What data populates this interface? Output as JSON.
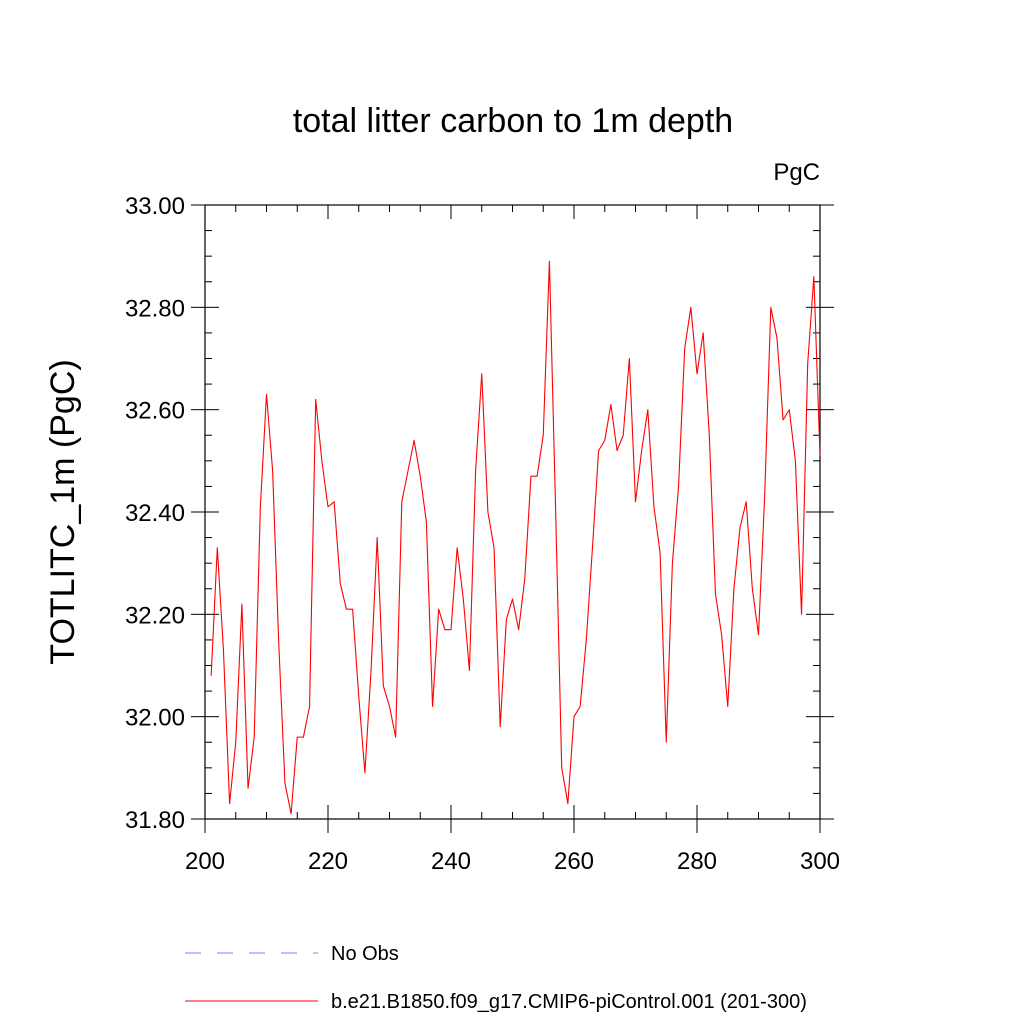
{
  "chart_data": {
    "type": "line",
    "title": "total litter carbon to 1m depth",
    "units": "PgC",
    "xlabel": "",
    "ylabel": "TOTLITC_1m  (PgC)",
    "xlim": [
      200,
      300
    ],
    "ylim": [
      31.8,
      33.0
    ],
    "xticks": [
      200,
      220,
      240,
      260,
      280,
      300
    ],
    "xtick_labels": [
      "200",
      "220",
      "240",
      "260",
      "280",
      "300"
    ],
    "yticks": [
      31.8,
      32.0,
      32.2,
      32.4,
      32.6,
      32.8,
      33.0
    ],
    "ytick_labels": [
      "31.80",
      "32.00",
      "32.20",
      "32.40",
      "32.60",
      "32.80",
      "33.00"
    ],
    "grid": false,
    "legend_position": "bottom",
    "series": [
      {
        "name": "b.e21.B1850.f09_g17.CMIP6-piControl.001 (201-300)",
        "color": "#ff0000",
        "style": "solid",
        "x": [
          201,
          202,
          203,
          204,
          205,
          206,
          207,
          208,
          209,
          210,
          211,
          212,
          213,
          214,
          215,
          216,
          217,
          218,
          219,
          220,
          221,
          222,
          223,
          224,
          225,
          226,
          227,
          228,
          229,
          230,
          231,
          232,
          233,
          234,
          235,
          236,
          237,
          238,
          239,
          240,
          241,
          242,
          243,
          244,
          245,
          246,
          247,
          248,
          249,
          250,
          251,
          252,
          253,
          254,
          255,
          256,
          257,
          258,
          259,
          260,
          261,
          262,
          263,
          264,
          265,
          266,
          267,
          268,
          269,
          270,
          271,
          272,
          273,
          274,
          275,
          276,
          277,
          278,
          279,
          280,
          281,
          282,
          283,
          284,
          285,
          286,
          287,
          288,
          289,
          290,
          291,
          292,
          293,
          294,
          295,
          296,
          297,
          298,
          299,
          300
        ],
        "values": [
          32.08,
          32.33,
          32.13,
          31.83,
          31.95,
          32.22,
          31.86,
          31.96,
          32.41,
          32.63,
          32.48,
          32.14,
          31.87,
          31.81,
          31.96,
          31.96,
          32.02,
          32.62,
          32.5,
          32.41,
          32.42,
          32.26,
          32.21,
          32.21,
          32.04,
          31.89,
          32.09,
          32.35,
          32.06,
          32.02,
          31.96,
          32.42,
          32.48,
          32.54,
          32.47,
          32.38,
          32.02,
          32.21,
          32.17,
          32.17,
          32.33,
          32.23,
          32.09,
          32.48,
          32.67,
          32.4,
          32.33,
          31.98,
          32.19,
          32.23,
          32.17,
          32.27,
          32.47,
          32.47,
          32.55,
          32.89,
          32.41,
          31.9,
          31.83,
          32.0,
          32.02,
          32.15,
          32.33,
          32.52,
          32.54,
          32.61,
          32.52,
          32.55,
          32.7,
          32.42,
          32.52,
          32.6,
          32.41,
          32.32,
          31.95,
          32.3,
          32.45,
          32.72,
          32.8,
          32.67,
          32.75,
          32.55,
          32.24,
          32.16,
          32.02,
          32.25,
          32.37,
          32.42,
          32.25,
          32.16,
          32.43,
          32.8,
          32.74,
          32.58,
          32.6,
          32.5,
          32.2,
          32.69,
          32.86,
          32.51
        ]
      },
      {
        "name": "No Obs",
        "color": "#8080ff",
        "style": "dashed",
        "x": [],
        "values": []
      }
    ]
  }
}
